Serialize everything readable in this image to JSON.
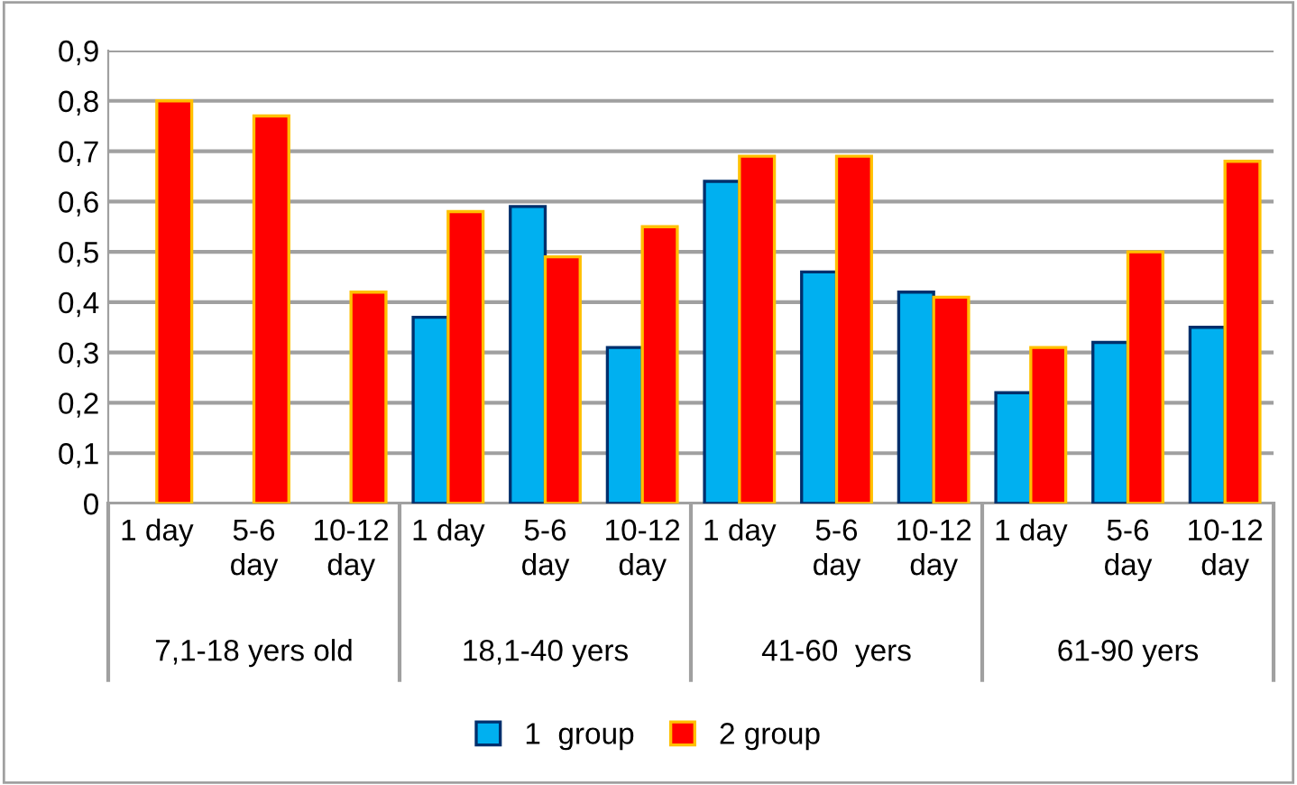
{
  "chart_data": {
    "type": "bar",
    "categories": [
      "1 day",
      "5-6\nday",
      "10-12\nday",
      "1 day",
      "5-6\nday",
      "10-12\nday",
      "1 day",
      "5-6\nday",
      "10-12\nday",
      "1 day",
      "5-6\nday",
      "10-12\nday"
    ],
    "series": [
      {
        "name": "1  group",
        "color": "#00b0f0",
        "values": [
          null,
          null,
          null,
          0.37,
          0.59,
          0.31,
          0.64,
          0.46,
          0.42,
          0.22,
          0.32,
          0.35
        ]
      },
      {
        "name": "2 group",
        "color": "#ff0000",
        "values": [
          0.8,
          0.77,
          0.42,
          0.58,
          0.49,
          0.55,
          0.69,
          0.69,
          0.41,
          0.31,
          0.5,
          0.68
        ]
      }
    ],
    "annotations": [
      "7,1-18 yers old",
      "18,1-40 yers",
      "41-60  yers",
      "61-90 yers"
    ],
    "ylim": [
      0,
      0.9
    ],
    "yticks": [
      0,
      {
        "value": 0.1,
        "label": "0,1"
      },
      {
        "value": 0.2,
        "label": "0,2"
      },
      {
        "value": 0.3,
        "label": "0,3"
      },
      {
        "value": 0.4,
        "label": "0,4"
      },
      {
        "value": 0.5,
        "label": "0,5"
      },
      {
        "value": 0.6,
        "label": "0,6"
      },
      {
        "value": 0.7,
        "label": "0,7"
      },
      {
        "value": 0.8,
        "label": "0,8"
      },
      {
        "value": 0.9,
        "label": "0,9"
      }
    ],
    "grid": "y",
    "legend": "bottom"
  }
}
